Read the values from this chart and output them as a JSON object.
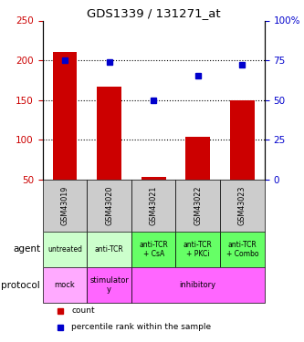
{
  "title": "GDS1339 / 131271_at",
  "samples": [
    "GSM43019",
    "GSM43020",
    "GSM43021",
    "GSM43022",
    "GSM43023"
  ],
  "counts": [
    210,
    167,
    53,
    104,
    150
  ],
  "percentiles": [
    75,
    74,
    50,
    65,
    72
  ],
  "left_ylim": [
    50,
    250
  ],
  "left_yticks": [
    50,
    100,
    150,
    200,
    250
  ],
  "right_ylim": [
    0,
    100
  ],
  "right_yticks": [
    0,
    25,
    50,
    75,
    100
  ],
  "bar_color": "#cc0000",
  "dot_color": "#0000cc",
  "bar_bottom": 50,
  "agent_labels": [
    "untreated",
    "anti-TCR",
    "anti-TCR\n+ CsA",
    "anti-TCR\n+ PKCi",
    "anti-TCR\n+ Combo"
  ],
  "agent_bg_colors": [
    "#ccffcc",
    "#ccffcc",
    "#66ff66",
    "#66ff66",
    "#66ff66"
  ],
  "protocol_bg": "#ff66ff",
  "protocol_mock_bg": "#ffaaff",
  "gsm_bg": "#cccccc",
  "legend_count_color": "#cc0000",
  "legend_pct_color": "#0000cc",
  "left_ylabel_color": "#cc0000",
  "right_ylabel_color": "#0000cc",
  "dotted_lines": [
    100,
    150,
    200
  ],
  "right_ytick_labels": [
    "0",
    "25",
    "50",
    "75",
    "100%"
  ]
}
